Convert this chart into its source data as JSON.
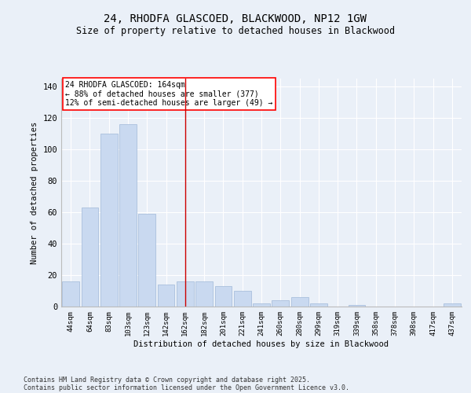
{
  "title_line1": "24, RHODFA GLASCOED, BLACKWOOD, NP12 1GW",
  "title_line2": "Size of property relative to detached houses in Blackwood",
  "xlabel": "Distribution of detached houses by size in Blackwood",
  "ylabel": "Number of detached properties",
  "annotation_line1": "24 RHODFA GLASCOED: 164sqm",
  "annotation_line2": "← 88% of detached houses are smaller (377)",
  "annotation_line3": "12% of semi-detached houses are larger (49) →",
  "bar_color": "#c9d9f0",
  "bar_edge_color": "#a0b8d8",
  "vline_color": "#cc0000",
  "vline_x_index": 6,
  "categories": [
    "44sqm",
    "64sqm",
    "83sqm",
    "103sqm",
    "123sqm",
    "142sqm",
    "162sqm",
    "182sqm",
    "201sqm",
    "221sqm",
    "241sqm",
    "260sqm",
    "280sqm",
    "299sqm",
    "319sqm",
    "339sqm",
    "358sqm",
    "378sqm",
    "398sqm",
    "417sqm",
    "437sqm"
  ],
  "values": [
    16,
    63,
    110,
    116,
    59,
    14,
    16,
    16,
    13,
    10,
    2,
    4,
    6,
    2,
    0,
    1,
    0,
    0,
    0,
    0,
    2
  ],
  "ylim": [
    0,
    145
  ],
  "yticks": [
    0,
    20,
    40,
    60,
    80,
    100,
    120,
    140
  ],
  "background_color": "#eaf0f8",
  "grid_color": "#ffffff",
  "footer_line1": "Contains HM Land Registry data © Crown copyright and database right 2025.",
  "footer_line2": "Contains public sector information licensed under the Open Government Licence v3.0."
}
